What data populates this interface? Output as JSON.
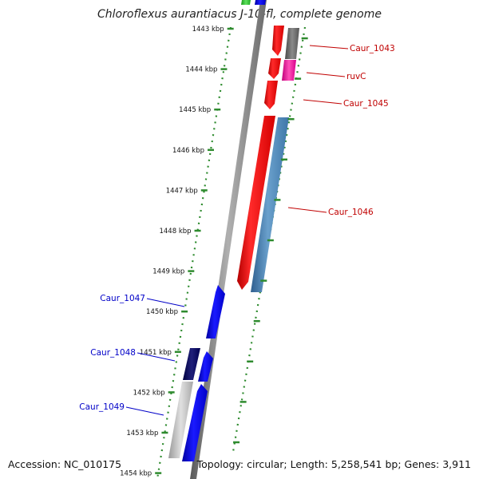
{
  "title": "Chloroflexus aurantiacus J-10-fl, complete genome",
  "accession_text": "Accession: NC_010175",
  "topology_text": "Topology: circular; Length: 5,258,541 bp; Genes: 3,911",
  "colors": {
    "backbone": "#7f7f7f",
    "tick": "#2e8b2e",
    "forward_label": "#c00000",
    "reverse_label": "#0000c8"
  },
  "ticks": [
    {
      "label": "1443 kbp"
    },
    {
      "label": "1444 kbp"
    },
    {
      "label": "1445 kbp"
    },
    {
      "label": "1446 kbp"
    },
    {
      "label": "1447 kbp"
    },
    {
      "label": "1448 kbp"
    },
    {
      "label": "1449 kbp"
    },
    {
      "label": "1450 kbp"
    },
    {
      "label": "1451 kbp"
    },
    {
      "label": "1452 kbp"
    },
    {
      "label": "1453 kbp"
    },
    {
      "label": "1454 kbp"
    }
  ],
  "gene_labels": [
    {
      "text": "Caur_1043",
      "strand": "forward"
    },
    {
      "text": "ruvC",
      "strand": "forward"
    },
    {
      "text": "Caur_1045",
      "strand": "forward"
    },
    {
      "text": "Caur_1046",
      "strand": "forward"
    },
    {
      "text": "Caur_1047",
      "strand": "reverse"
    },
    {
      "text": "Caur_1048",
      "strand": "reverse"
    },
    {
      "text": "Caur_1049",
      "strand": "reverse"
    }
  ]
}
